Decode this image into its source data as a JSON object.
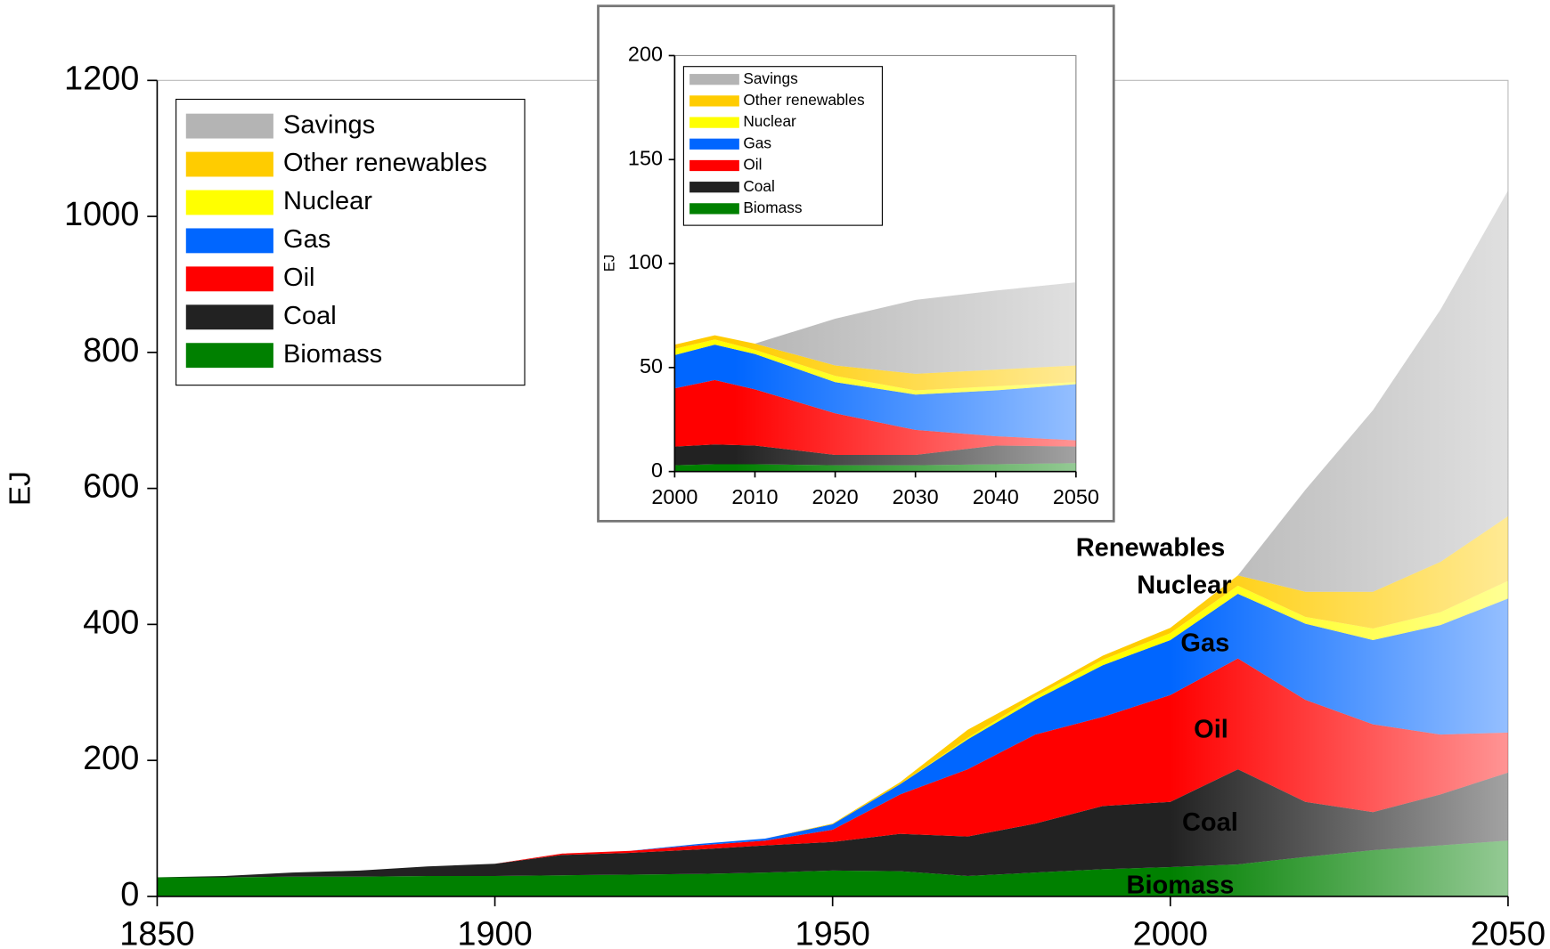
{
  "chart_data": [
    {
      "type": "stacked_area",
      "ylabel": "EJ",
      "x": [
        1850,
        1860,
        1870,
        1880,
        1890,
        1900,
        1910,
        1920,
        1930,
        1940,
        1950,
        1960,
        1970,
        1980,
        1990,
        2000,
        2010,
        2020,
        2030,
        2040,
        2050
      ],
      "xlim": [
        1850,
        2050
      ],
      "xticks": [
        1850,
        1900,
        1950,
        2000,
        2050
      ],
      "ylim": [
        0,
        1200
      ],
      "yticks": [
        0,
        200,
        400,
        600,
        800,
        1000,
        1200
      ],
      "legend": "upper left",
      "series": [
        {
          "name": "Biomass",
          "color": "#008000",
          "values": [
            28,
            28,
            29,
            29,
            30,
            30,
            31,
            32,
            33,
            35,
            38,
            37,
            30,
            35,
            40,
            43,
            47,
            58,
            68,
            75,
            82
          ]
        },
        {
          "name": "Coal",
          "color": "#222222",
          "values": [
            0,
            2,
            6,
            9,
            14,
            18,
            30,
            32,
            36,
            40,
            42,
            55,
            58,
            72,
            93,
            96,
            140,
            81,
            56,
            75,
            100
          ]
        },
        {
          "name": "Oil",
          "color": "#ff0000",
          "values": [
            0,
            0,
            0,
            0,
            0,
            0,
            2,
            3,
            6,
            7,
            18,
            58,
            99,
            131,
            131,
            157,
            163,
            150,
            129,
            88,
            59
          ]
        },
        {
          "name": "Gas",
          "color": "#0066ff",
          "values": [
            0,
            0,
            0,
            0,
            0,
            0,
            0,
            0,
            2,
            3,
            8,
            15,
            44,
            51,
            76,
            81,
            95,
            112,
            124,
            161,
            197
          ]
        },
        {
          "name": "Nuclear",
          "color": "#ffff00",
          "values": [
            0,
            0,
            0,
            0,
            0,
            0,
            0,
            0,
            0,
            0,
            0,
            0,
            2,
            5,
            8,
            10,
            12,
            10,
            17,
            19,
            26
          ]
        },
        {
          "name": "Other renewables",
          "color": "#ffcc00",
          "values": [
            0,
            0,
            0,
            0,
            0,
            0,
            0,
            0,
            0,
            0,
            1,
            3,
            12,
            5,
            6,
            8,
            15,
            37,
            54,
            74,
            95
          ]
        },
        {
          "name": "Savings",
          "color": "#b4b4b4",
          "values": [
            0,
            0,
            0,
            0,
            0,
            0,
            0,
            0,
            0,
            0,
            0,
            0,
            0,
            0,
            0,
            0,
            0,
            150,
            267,
            371,
            479
          ]
        }
      ],
      "annotations": [
        {
          "text": "Renewables",
          "color": "#000000"
        },
        {
          "text": "Nuclear",
          "color": "#000000"
        },
        {
          "text": "Gas",
          "color": "#ffffff"
        },
        {
          "text": "Oil",
          "color": "#ffffff"
        },
        {
          "text": "Coal",
          "color": "#ffffff"
        },
        {
          "text": "Biomass",
          "color": "#ffffff"
        }
      ]
    },
    {
      "type": "stacked_area",
      "ylabel": "EJ",
      "x": [
        2000,
        2005,
        2010,
        2020,
        2030,
        2040,
        2050
      ],
      "xlim": [
        2000,
        2050
      ],
      "xticks": [
        2000,
        2010,
        2020,
        2030,
        2040,
        2050
      ],
      "ylim": [
        0,
        200
      ],
      "yticks": [
        0,
        50,
        100,
        150,
        200
      ],
      "legend": "upper left",
      "series": [
        {
          "name": "Biomass",
          "color": "#008000",
          "values": [
            3,
            3.5,
            3.5,
            3,
            3,
            3.5,
            4
          ]
        },
        {
          "name": "Coal",
          "color": "#222222",
          "values": [
            9,
            9.5,
            9,
            5,
            5,
            9,
            8
          ]
        },
        {
          "name": "Oil",
          "color": "#ff0000",
          "values": [
            28,
            31,
            27,
            20,
            12,
            4.5,
            3
          ]
        },
        {
          "name": "Gas",
          "color": "#0066ff",
          "values": [
            16,
            17,
            17,
            15,
            17,
            22,
            27
          ]
        },
        {
          "name": "Nuclear",
          "color": "#ffff00",
          "values": [
            3,
            2.5,
            2,
            3,
            2,
            2,
            1
          ]
        },
        {
          "name": "Other renewables",
          "color": "#ffcc00",
          "values": [
            2,
            2,
            3,
            5,
            8,
            8,
            8
          ]
        },
        {
          "name": "Savings",
          "color": "#b4b4b4",
          "values": [
            0,
            0,
            0,
            22.5,
            35.5,
            38,
            40
          ]
        }
      ]
    }
  ]
}
